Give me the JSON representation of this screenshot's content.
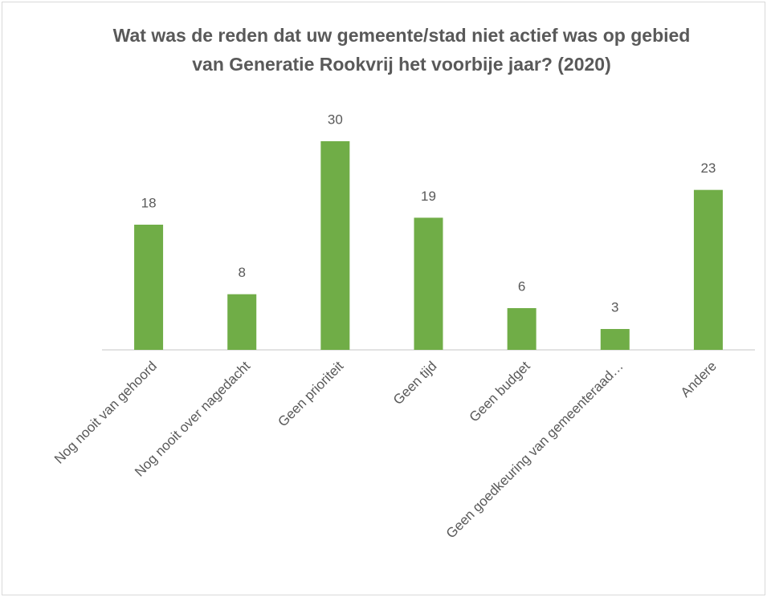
{
  "chart_data": {
    "type": "bar",
    "title": "Wat was de reden dat uw gemeente/stad niet actief was op gebied van Generatie Rookvrij het voorbije jaar? (2020)",
    "categories": [
      "Nog nooit van gehoord",
      "Nog nooit over nagedacht",
      "Geen prioriteit",
      "Geen tijd",
      "Geen budget",
      "Geen goedkeuring van gemeenteraad…",
      "Andere"
    ],
    "values": [
      18,
      8,
      30,
      19,
      6,
      3,
      23
    ],
    "color": "#70ad47"
  }
}
